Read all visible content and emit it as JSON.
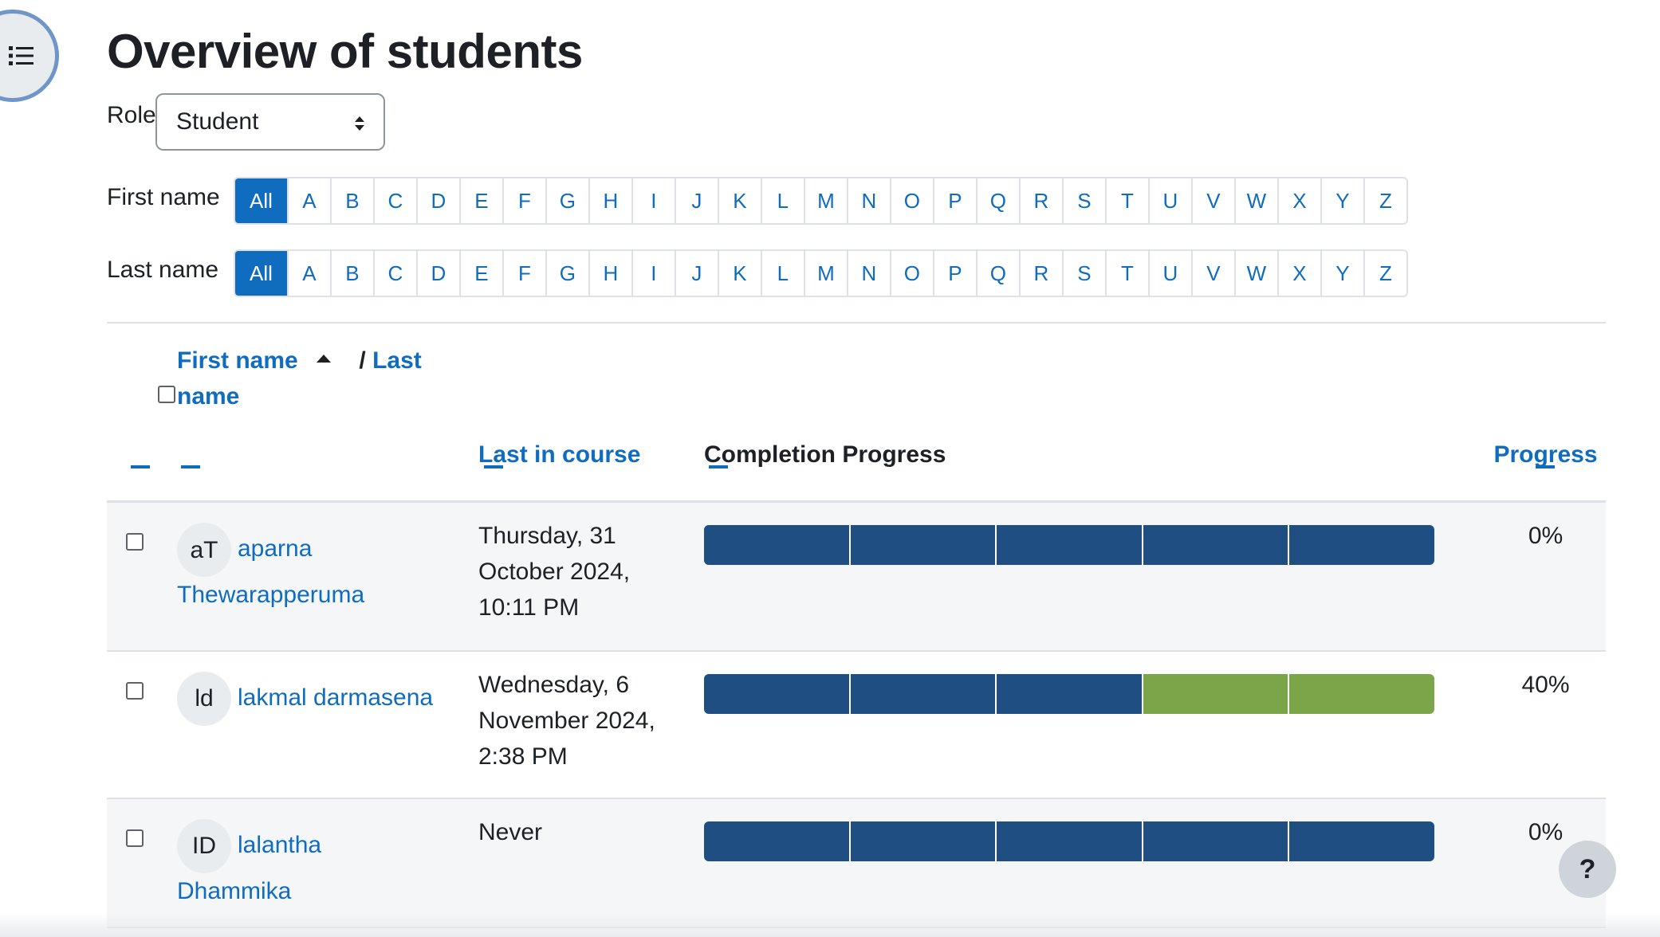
{
  "page": {
    "title": "Overview of students"
  },
  "role": {
    "label": "Role",
    "selected": "Student"
  },
  "filters": {
    "first_name_label": "First name",
    "last_name_label": "Last name",
    "all_label": "All",
    "letters": [
      "A",
      "B",
      "C",
      "D",
      "E",
      "F",
      "G",
      "H",
      "I",
      "J",
      "K",
      "L",
      "M",
      "N",
      "O",
      "P",
      "Q",
      "R",
      "S",
      "T",
      "U",
      "V",
      "W",
      "X",
      "Y",
      "Z"
    ]
  },
  "table": {
    "headers": {
      "first_name": "First name",
      "last_name": "Last",
      "last_name_rest": "name",
      "last_in_course": "Last in course",
      "completion_progress": "Completion Progress",
      "progress": "Progress"
    },
    "rows": [
      {
        "initials": "aT",
        "first_name": "aparna",
        "last_name": "Thewarapperuma",
        "last_access_lines": [
          "Thursday, 31",
          "October 2024,",
          "10:11 PM"
        ],
        "progress_percent": "0%",
        "completion_segments": [
          0,
          0,
          0,
          0,
          0
        ]
      },
      {
        "initials": "ld",
        "first_name": "lakmal darmasena",
        "last_name": "",
        "last_access_lines": [
          "Wednesday, 6",
          "November 2024,",
          "2:38 PM"
        ],
        "progress_percent": "40%",
        "completion_segments": [
          0,
          0,
          0,
          1,
          1
        ]
      },
      {
        "initials": "ID",
        "first_name": "lalantha",
        "last_name": "Dhammika",
        "last_access_lines": [
          "Never"
        ],
        "progress_percent": "0%",
        "completion_segments": [
          0,
          0,
          0,
          0,
          0
        ]
      }
    ]
  },
  "help": {
    "label": "?"
  },
  "colors": {
    "link": "#0f6cbf",
    "complete": "#7ba549",
    "incomplete": "#1f4e82"
  }
}
